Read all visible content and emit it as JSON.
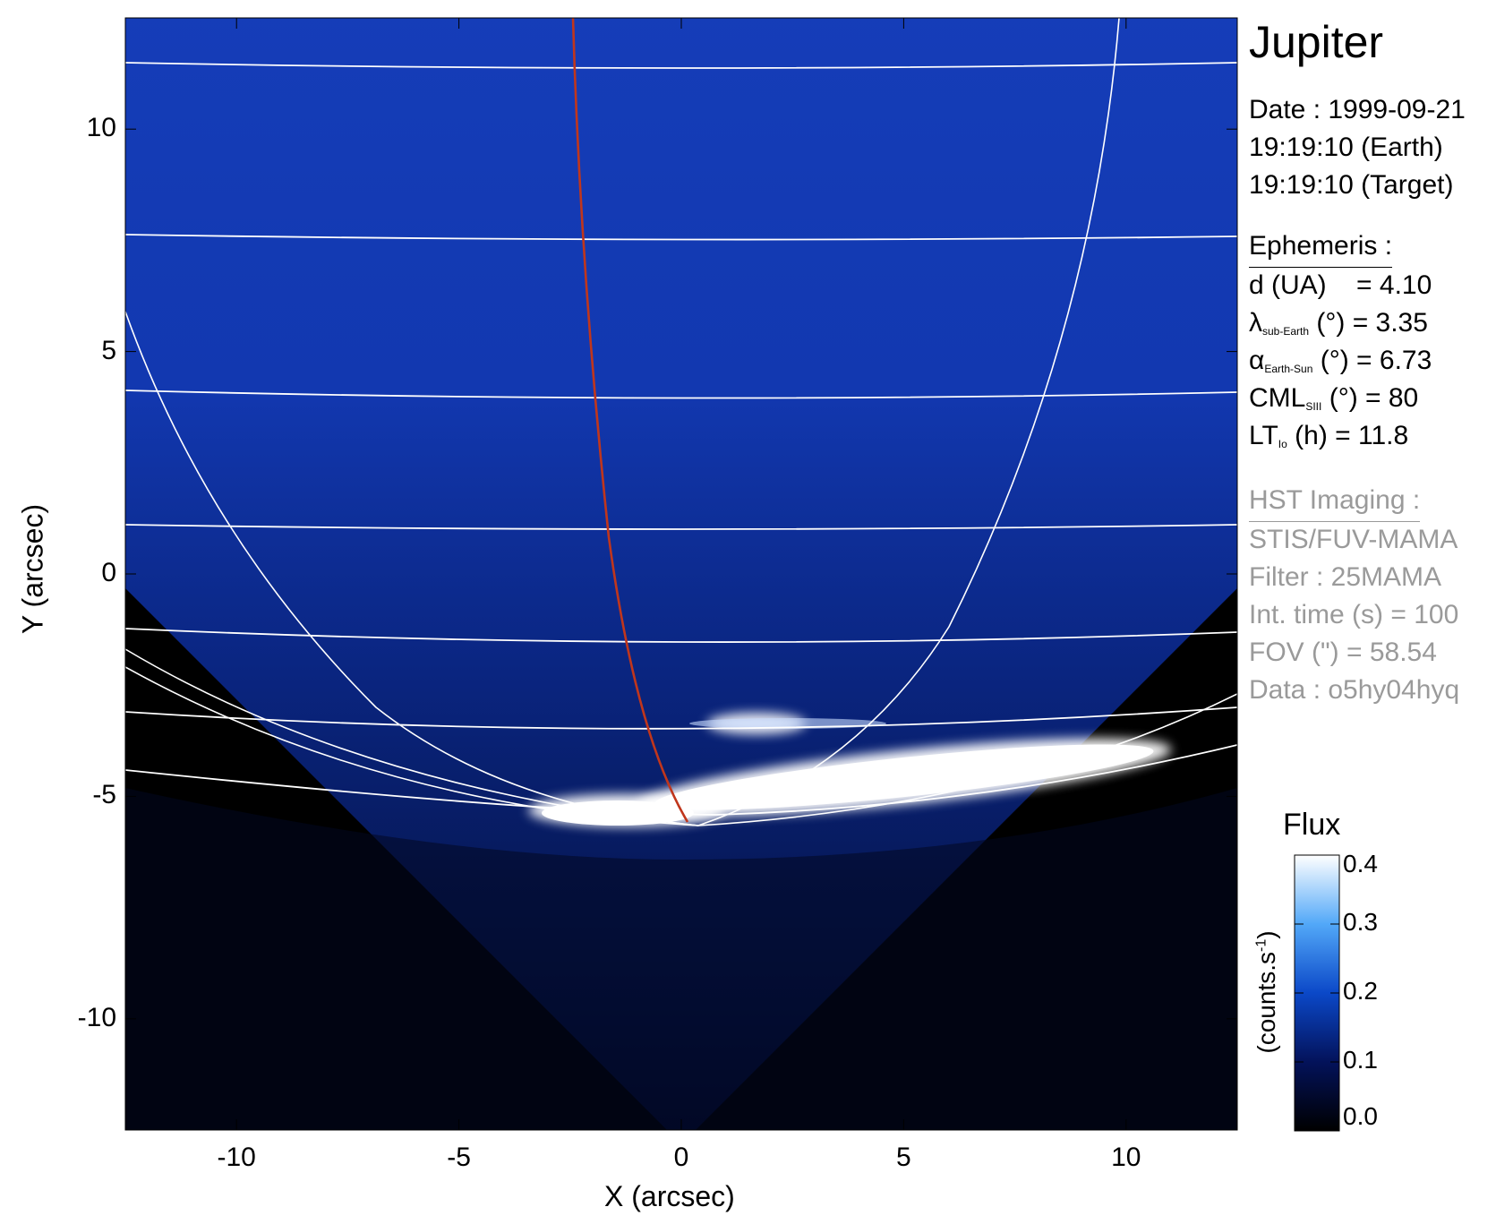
{
  "chart_data": {
    "type": "heatmap",
    "xlabel": "X (arcsec)",
    "ylabel": "Y (arcsec)",
    "xlim": [
      -12.5,
      12.5
    ],
    "ylim": [
      -12.5,
      12.5
    ],
    "x_ticks": [
      "-10",
      "-5",
      "0",
      "5",
      "10"
    ],
    "x_tick_values": [
      -10,
      -5,
      0,
      5,
      10
    ],
    "y_ticks": [
      "10",
      "5",
      "0",
      "-5",
      "-10"
    ],
    "y_tick_values": [
      10,
      5,
      0,
      -5,
      -10
    ],
    "colorbar": {
      "title": "Flux",
      "label": "(counts.s",
      "label_sup": "-1",
      "label_end": ")",
      "ticks": [
        "0.4",
        "0.3",
        "0.2",
        "0.1",
        "0.0"
      ],
      "tick_values": [
        0.4,
        0.3,
        0.2,
        0.1,
        0.0
      ],
      "range": [
        0.0,
        0.4
      ]
    },
    "colors": {
      "background": "#000000",
      "disk": "#0a2fa8",
      "aurora": "#ffffff",
      "grid": "#ffffff",
      "io_footprint": "#c0361c"
    }
  },
  "panel": {
    "title": "Jupiter",
    "date": "Date : 1999-09-21",
    "time_earth": "19:19:10 (Earth)",
    "time_target": "19:19:10 (Target)",
    "ephemeris_header": "Ephemeris :",
    "d_label": "d (UA)",
    "d_value": "= 4.10",
    "lambda_symbol": "λ",
    "lambda_sub": "sub-Earth",
    "lambda_rest": "(°) = 3.35",
    "alpha_symbol": "α",
    "alpha_sub": "Earth-Sun",
    "alpha_rest": "(°) = 6.73",
    "cml_main": "CML",
    "cml_sub": "SIII",
    "cml_rest": "(°) = 80",
    "lt_main": "LT",
    "lt_sub": "Io",
    "lt_rest": "(h) = 11.8",
    "hst_header": "HST Imaging :",
    "instrument": "STIS/FUV-MAMA",
    "filter": "Filter : 25MAMA",
    "int_time": "Int. time (s) = 100",
    "fov": "FOV (\") = 58.54",
    "data_id": "Data : o5hy04hyq"
  }
}
